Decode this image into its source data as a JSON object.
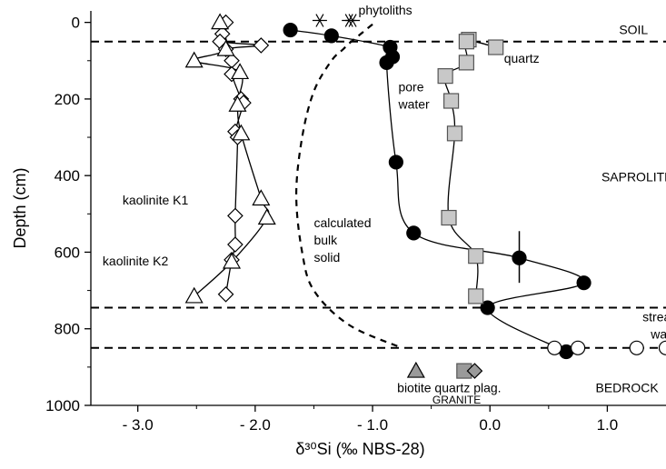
{
  "chart_data": {
    "type": "line",
    "xlabel": "δ³⁰Si (‰ NBS-28)",
    "ylabel": "Depth (cm)",
    "xlim": [
      -3.4,
      1.5
    ],
    "ylim": [
      1000,
      -30
    ],
    "y_inverted": true,
    "xticks": [
      -3.0,
      -2.0,
      -1.0,
      0.0,
      1.0
    ],
    "xtick_labels": [
      "- 3.0",
      "- 2.0",
      "- 1.0",
      "0.0",
      "1.0"
    ],
    "yticks": [
      0,
      200,
      400,
      600,
      800,
      1000
    ],
    "ytick_labels": [
      "0",
      "200",
      "400",
      "600",
      "800",
      "1000"
    ],
    "grid": false,
    "boundaries": [
      50,
      745,
      850
    ],
    "zone_labels": [
      {
        "text": "SOIL",
        "x": 1.1,
        "y": 30
      },
      {
        "text": "SAPROLITE",
        "x": 0.95,
        "y": 415
      },
      {
        "text": "BEDROCK",
        "x": 0.9,
        "y": 965
      }
    ],
    "annotations": [
      {
        "text": "phytoliths",
        "x": -1.12,
        "y": -20
      },
      {
        "text": "quartz",
        "x": 0.12,
        "y": 105
      },
      {
        "text": "pore",
        "x": -0.78,
        "y": 180
      },
      {
        "text": "water",
        "x": -0.78,
        "y": 225
      },
      {
        "text": "kaolinite K1",
        "x": -3.13,
        "y": 475
      },
      {
        "text": "kaolinite K2",
        "x": -3.3,
        "y": 635
      },
      {
        "text": "calculated",
        "x": -1.5,
        "y": 535
      },
      {
        "text": "bulk",
        "x": -1.5,
        "y": 580
      },
      {
        "text": "solid",
        "x": -1.5,
        "y": 625
      },
      {
        "text": "stream",
        "x": 1.3,
        "y": 780
      },
      {
        "text": "water",
        "x": 1.37,
        "y": 825
      },
      {
        "text": "biotite quartz plag.",
        "x": -0.79,
        "y": 965
      },
      {
        "text": "GRANITE",
        "x": -0.49,
        "y": 995
      }
    ],
    "series": [
      {
        "marker": "diamond",
        "fill": "#ffffff",
        "line": "solid",
        "points": [
          [
            -2.25,
            0
          ],
          [
            -2.28,
            30
          ],
          [
            -2.3,
            50
          ],
          [
            -1.95,
            60
          ],
          [
            -2.25,
            70
          ],
          [
            -2.2,
            100
          ],
          [
            -2.2,
            135
          ],
          [
            -2.12,
            200
          ],
          [
            -2.1,
            210
          ],
          [
            -2.17,
            285
          ],
          [
            -2.15,
            300
          ],
          [
            -2.17,
            505
          ],
          [
            -2.17,
            580
          ],
          [
            -2.2,
            620
          ],
          [
            -2.25,
            710
          ]
        ]
      },
      {
        "marker": "triangle",
        "fill": "#ffffff",
        "line": "solid",
        "points": [
          [
            -2.3,
            0
          ],
          [
            -2.25,
            70
          ],
          [
            -2.52,
            100
          ],
          [
            -2.13,
            130
          ],
          [
            -2.15,
            215
          ],
          [
            -2.12,
            290
          ],
          [
            -1.95,
            460
          ],
          [
            -1.9,
            510
          ],
          [
            -2.2,
            625
          ],
          [
            -2.52,
            715
          ]
        ]
      },
      {
        "marker": "circle",
        "fill": "#000000",
        "line": "solid",
        "points": [
          [
            -1.7,
            20
          ],
          [
            -1.35,
            35
          ],
          [
            -0.85,
            65
          ],
          [
            -0.83,
            90
          ],
          [
            -0.88,
            105
          ],
          [
            -0.8,
            365
          ],
          [
            -0.65,
            550
          ],
          [
            0.25,
            615
          ],
          [
            0.8,
            680
          ],
          [
            -0.02,
            745
          ],
          [
            0.65,
            860
          ]
        ]
      },
      {
        "marker": "square",
        "fill": "#c8c8c8",
        "line": "solid",
        "points": [
          [
            -0.18,
            45
          ],
          [
            0.05,
            65
          ],
          [
            -0.2,
            50
          ],
          [
            -0.2,
            105
          ],
          [
            -0.38,
            140
          ],
          [
            -0.33,
            205
          ],
          [
            -0.3,
            290
          ],
          [
            -0.35,
            510
          ],
          [
            -0.12,
            610
          ],
          [
            -0.12,
            715
          ]
        ]
      },
      {
        "marker": "asterisk",
        "fill": "#ffffff",
        "line": "none",
        "points": [
          [
            -1.45,
            -5
          ],
          [
            -1.2,
            -5
          ],
          [
            -1.17,
            -5
          ]
        ]
      },
      {
        "marker": "circle",
        "fill": "#ffffff",
        "line": "none",
        "points": [
          [
            0.55,
            850
          ],
          [
            0.75,
            850
          ],
          [
            1.25,
            850
          ],
          [
            1.5,
            850
          ]
        ]
      },
      {
        "marker": "none",
        "fill": "none",
        "line": "dashed",
        "points": [
          [
            -1.0,
            5
          ],
          [
            -1.1,
            30
          ],
          [
            -1.2,
            55
          ],
          [
            -1.25,
            70
          ],
          [
            -1.35,
            100
          ],
          [
            -1.5,
            180
          ],
          [
            -1.6,
            300
          ],
          [
            -1.65,
            450
          ],
          [
            -1.6,
            600
          ],
          [
            -1.5,
            700
          ],
          [
            -1.2,
            790
          ],
          [
            -0.75,
            850
          ]
        ]
      }
    ],
    "granite_markers": [
      {
        "marker": "triangle",
        "fill": "#9a9a9a",
        "x": -0.63,
        "y": 910
      },
      {
        "marker": "square",
        "fill": "#9a9a9a",
        "x": -0.22,
        "y": 910
      },
      {
        "marker": "diamond",
        "fill": "#9a9a9a",
        "x": -0.13,
        "y": 910
      }
    ],
    "error_bars": [
      {
        "x": 0.25,
        "y": 615,
        "ymin": 545,
        "ymax": 680
      }
    ]
  }
}
